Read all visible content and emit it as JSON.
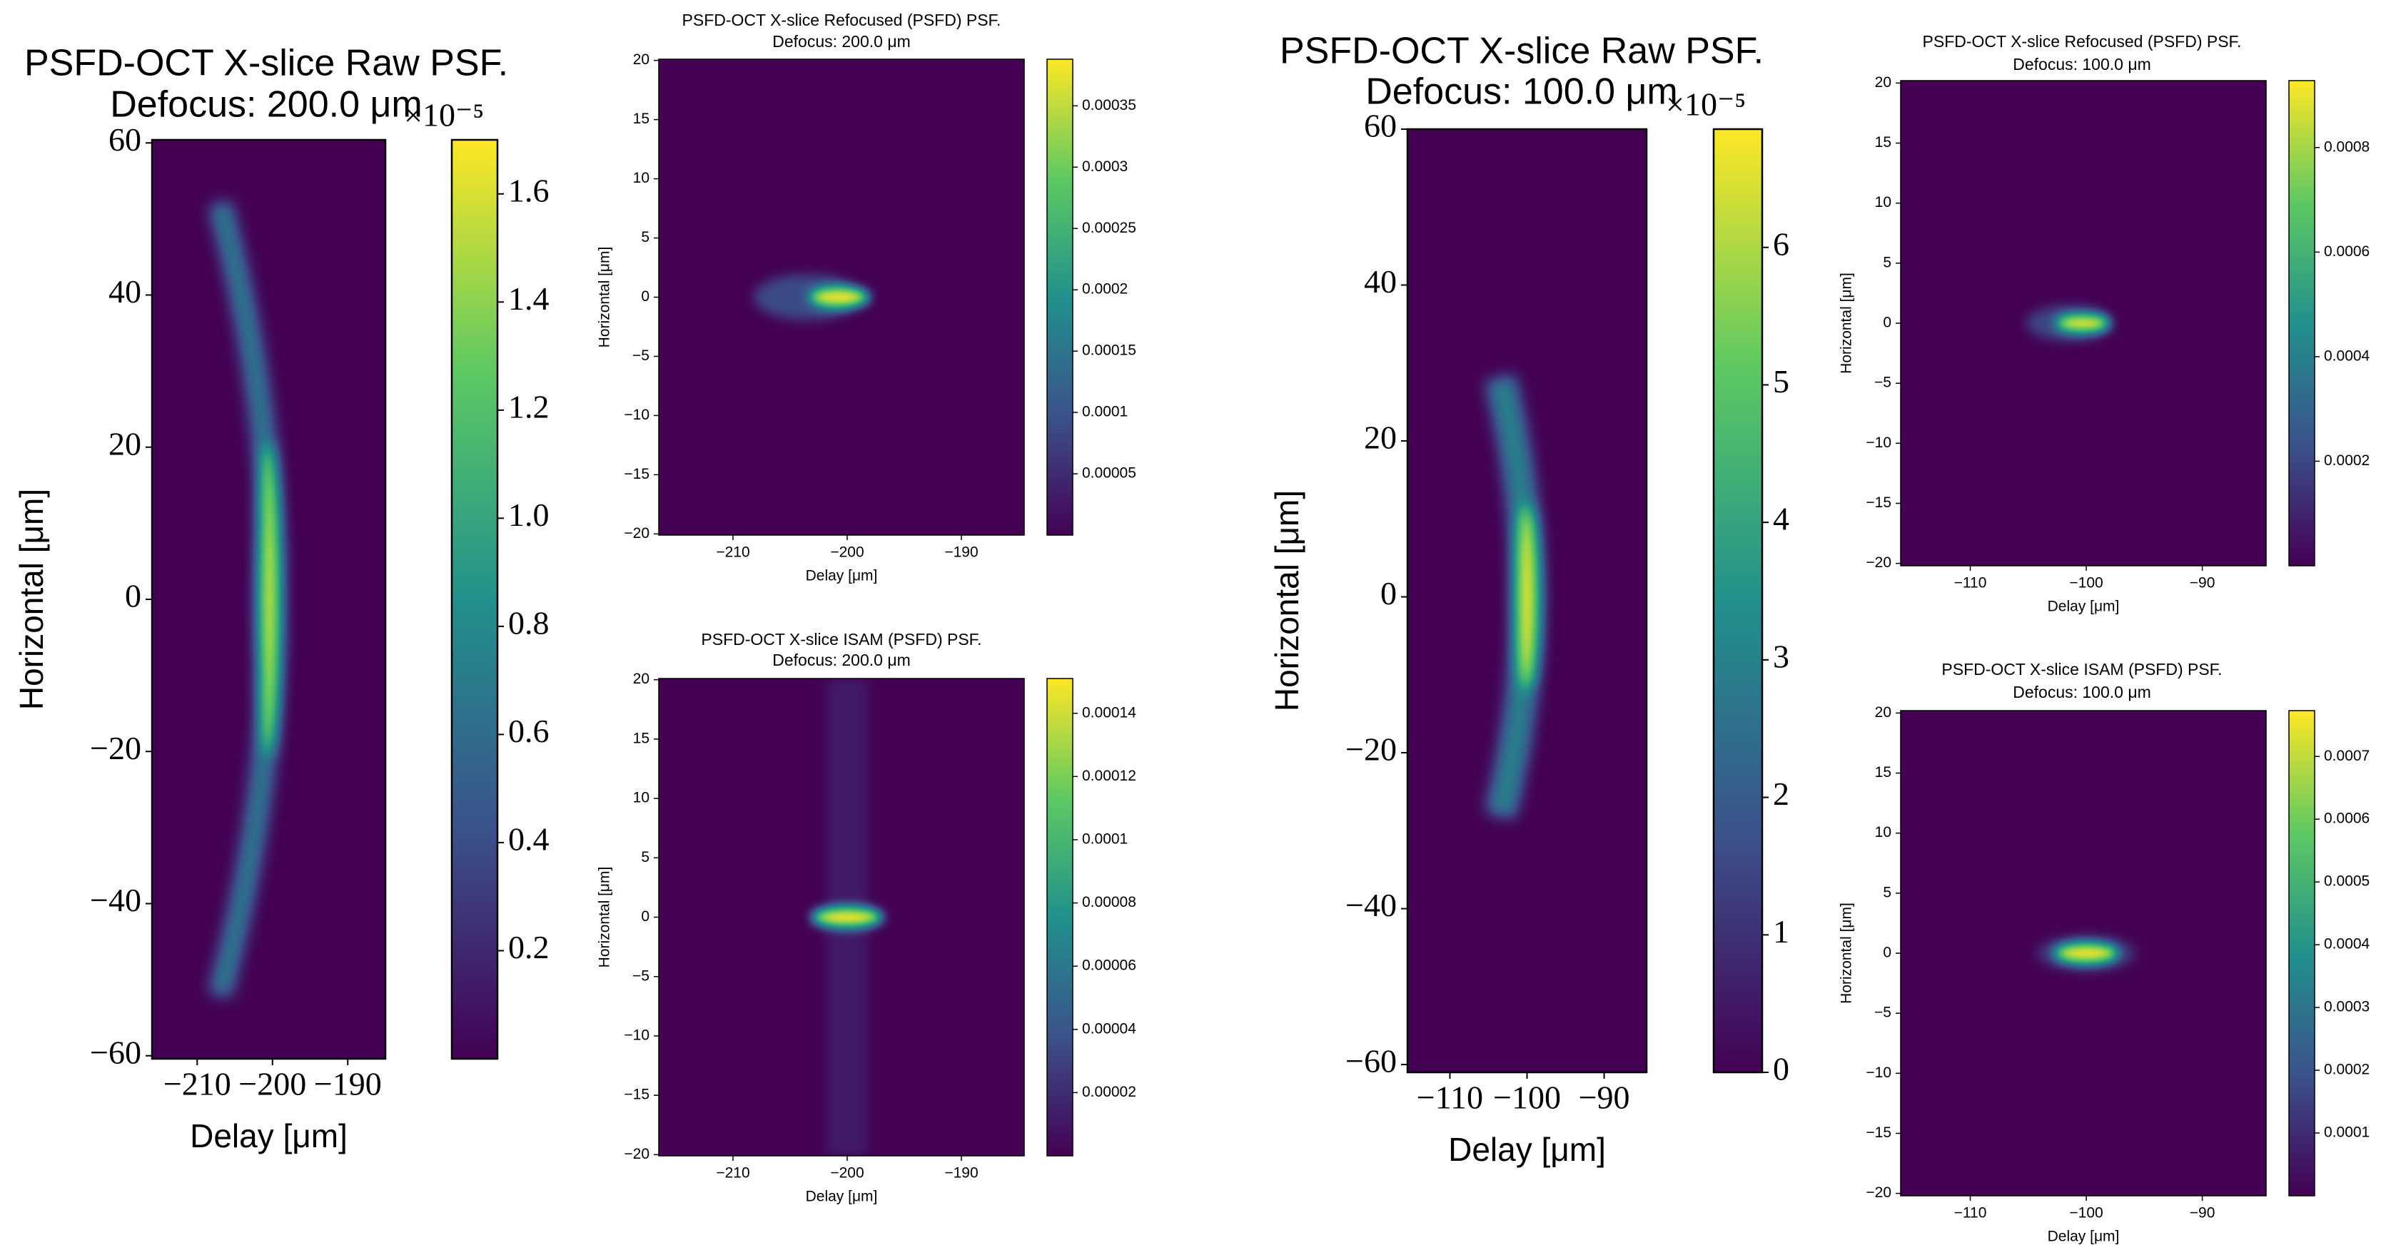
{
  "chart_data": [
    {
      "type": "heatmap",
      "title": "PSFD-OCT X-slice Raw PSF.",
      "subtitle": "Defocus:  200.0 μm",
      "x_label": "Delay [μm]",
      "y_label": "Horizontal [μm]",
      "xlim": [
        -216,
        -185
      ],
      "xticks": [
        {
          "value": -210,
          "label": "−210"
        },
        {
          "value": -200,
          "label": "−200"
        },
        {
          "value": -190,
          "label": "−190"
        }
      ],
      "ylim": [
        -60.4,
        60.4
      ],
      "yticks": [
        60,
        40,
        20,
        0,
        {
          "value": -20,
          "label": "−20"
        },
        {
          "value": -40,
          "label": "−40"
        },
        {
          "value": -60,
          "label": "−60"
        }
      ],
      "colorbar": {
        "lim": [
          0,
          1.7
        ],
        "ticks": [
          0.2,
          0.4,
          0.6,
          0.8,
          {
            "value": 1,
            "label": "1.0"
          },
          1.2,
          1.4,
          1.6
        ],
        "multiplier": "×10⁻⁵"
      },
      "colormap": "viridis",
      "peak": {
        "x": -200,
        "y": 0
      }
    },
    {
      "type": "heatmap",
      "title": "PSFD-OCT X-slice Refocused (PSFD) PSF.",
      "subtitle": "Defocus:  200.0 μm",
      "x_label": "Delay [μm]",
      "y_label": "Horizontal [μm]",
      "xlim": [
        -216.5,
        -184.5
      ],
      "xticks": [
        {
          "value": -210,
          "label": "−210"
        },
        {
          "value": -200,
          "label": "−200"
        },
        {
          "value": -190,
          "label": "−190"
        }
      ],
      "ylim": [
        -20.1,
        20.1
      ],
      "yticks": [
        20,
        15,
        10,
        5,
        0,
        {
          "value": -5,
          "label": "−5"
        },
        {
          "value": -10,
          "label": "−10"
        },
        {
          "value": -15,
          "label": "−15"
        },
        {
          "value": -20,
          "label": "−20"
        }
      ],
      "colorbar": {
        "lim": [
          0,
          0.000388
        ],
        "ticks": [
          5e-05,
          0.0001,
          0.00015,
          0.0002,
          0.00025,
          0.0003,
          0.00035
        ]
      },
      "colormap": "viridis",
      "peak": {
        "x": -200.7,
        "y": 0
      }
    },
    {
      "type": "heatmap",
      "title": "PSFD-OCT X-slice ISAM (PSFD) PSF.",
      "subtitle": "Defocus:  200.0 μm",
      "x_label": "Delay [μm]",
      "y_label": "Horizontal [μm]",
      "xlim": [
        -216.5,
        -184.5
      ],
      "xticks": [
        {
          "value": -210,
          "label": "−210"
        },
        {
          "value": -200,
          "label": "−200"
        },
        {
          "value": -190,
          "label": "−190"
        }
      ],
      "ylim": [
        -20.1,
        20.1
      ],
      "yticks": [
        20,
        15,
        10,
        5,
        0,
        {
          "value": -5,
          "label": "−5"
        },
        {
          "value": -10,
          "label": "−10"
        },
        {
          "value": -15,
          "label": "−15"
        },
        {
          "value": -20,
          "label": "−20"
        }
      ],
      "colorbar": {
        "lim": [
          0,
          0.000151
        ],
        "ticks": [
          2e-05,
          4e-05,
          6e-05,
          8e-05,
          0.0001,
          0.00012,
          0.00014
        ]
      },
      "colormap": "viridis",
      "peak": {
        "x": -200,
        "y": 0
      }
    },
    {
      "type": "heatmap",
      "title": "PSFD-OCT X-slice Raw PSF.",
      "subtitle": "Defocus:  100.0 μm",
      "x_label": "Delay [μm]",
      "y_label": "Horizontal [μm]",
      "xlim": [
        -115.5,
        -84.5
      ],
      "xticks": [
        {
          "value": -110,
          "label": "−110"
        },
        {
          "value": -100,
          "label": "−100"
        },
        {
          "value": -90,
          "label": "−90"
        }
      ],
      "ylim": [
        -61,
        60
      ],
      "yticks": [
        60,
        40,
        20,
        0,
        {
          "value": -20,
          "label": "−20"
        },
        {
          "value": -40,
          "label": "−40"
        },
        {
          "value": -60,
          "label": "−60"
        }
      ],
      "colorbar": {
        "lim": [
          0,
          6.86
        ],
        "ticks": [
          0,
          1,
          2,
          3,
          4,
          5,
          6
        ],
        "multiplier": "×10⁻⁵"
      },
      "colormap": "viridis",
      "peak": {
        "x": -100,
        "y": 0
      }
    },
    {
      "type": "heatmap",
      "title": "PSFD-OCT X-slice Refocused (PSFD) PSF.",
      "subtitle": "Defocus:  100.0 μm",
      "x_label": "Delay [μm]",
      "y_label": "Horizontal [μm]",
      "xlim": [
        -116,
        -84.5
      ],
      "xticks": [
        {
          "value": -110,
          "label": "−110"
        },
        {
          "value": -100,
          "label": "−100"
        },
        {
          "value": -90,
          "label": "−90"
        }
      ],
      "ylim": [
        -20.2,
        20.2
      ],
      "yticks": [
        20,
        15,
        10,
        5,
        0,
        {
          "value": -5,
          "label": "−5"
        },
        {
          "value": -10,
          "label": "−10"
        },
        {
          "value": -15,
          "label": "−15"
        },
        {
          "value": -20,
          "label": "−20"
        }
      ],
      "colorbar": {
        "lim": [
          0,
          0.000928
        ],
        "ticks": [
          0.0002,
          0.0004,
          0.0006,
          0.0008
        ]
      },
      "colormap": "viridis",
      "peak": {
        "x": -100.3,
        "y": 0
      }
    },
    {
      "type": "heatmap",
      "title": "PSFD-OCT X-slice ISAM (PSFD) PSF.",
      "subtitle": "Defocus:  100.0 μm",
      "x_label": "Delay [μm]",
      "y_label": "Horizontal [μm]",
      "xlim": [
        -116,
        -84.5
      ],
      "xticks": [
        {
          "value": -110,
          "label": "−110"
        },
        {
          "value": -100,
          "label": "−100"
        },
        {
          "value": -90,
          "label": "−90"
        }
      ],
      "ylim": [
        -20.2,
        20.2
      ],
      "yticks": [
        20,
        15,
        10,
        5,
        0,
        {
          "value": -5,
          "label": "−5"
        },
        {
          "value": -10,
          "label": "−10"
        },
        {
          "value": -15,
          "label": "−15"
        },
        {
          "value": -20,
          "label": "−20"
        }
      ],
      "colorbar": {
        "lim": [
          0,
          0.000773
        ],
        "ticks": [
          0.0001,
          0.0002,
          0.0003,
          0.0004,
          0.0005,
          0.0006,
          0.0007
        ]
      },
      "colormap": "viridis",
      "peak": {
        "x": -100,
        "y": 0
      }
    }
  ]
}
